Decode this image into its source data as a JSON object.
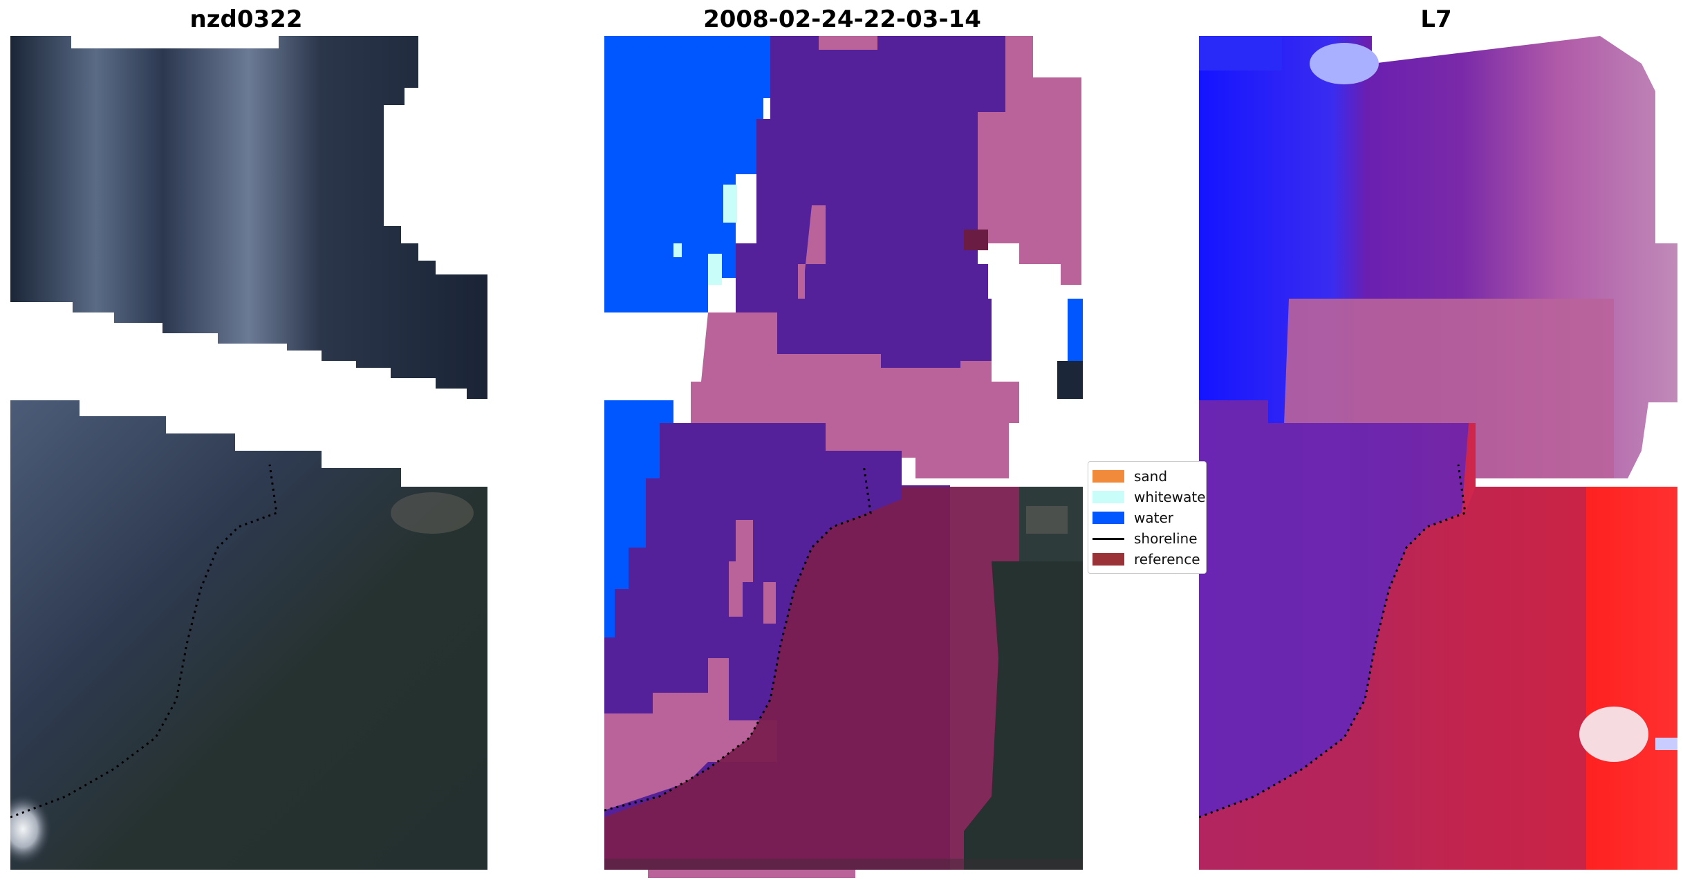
{
  "titles": {
    "left": "nzd0322",
    "middle": "2008-02-24-22-03-14",
    "right": "L7"
  },
  "legend": {
    "items": [
      {
        "label": "sand",
        "kind": "patch",
        "color": "#f28a3c"
      },
      {
        "label": "whitewater",
        "kind": "patch",
        "color": "#c9fdfa"
      },
      {
        "label": "water",
        "kind": "patch",
        "color": "#0057ff"
      },
      {
        "label": "shoreline",
        "kind": "line",
        "color": "#000000"
      },
      {
        "label": "reference",
        "kind": "patch",
        "color": "#9b3237"
      }
    ]
  },
  "colors": {
    "sand": "#f28a3c",
    "whitewater": "#c9fdfa",
    "water": "#0057ff",
    "reference": "#9b3237",
    "classified_other": "#55219a",
    "buffer_pink": "#b9639a",
    "reference_overlay": "#7a1f50",
    "rgb_dark": "#1c2638",
    "rgb_veg": "#2d3b3a"
  }
}
